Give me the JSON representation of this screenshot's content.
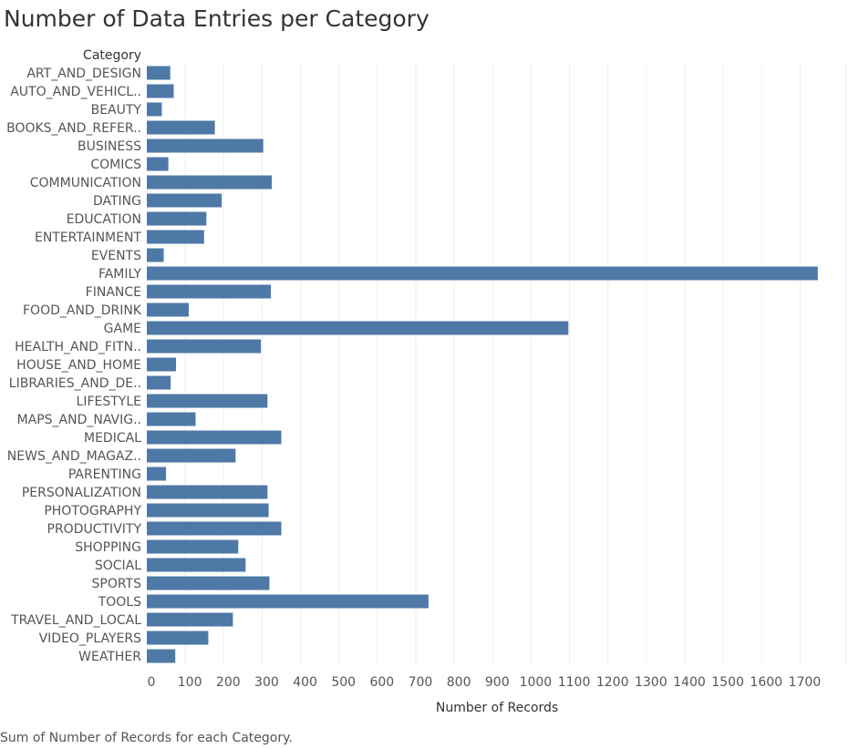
{
  "title": "Number of Data Entries per Category",
  "footer": "Sum of Number of Records for each Category.",
  "colors": {
    "bar": "#4e79a7",
    "grid": "#eeeeee",
    "text": "#555555"
  },
  "chart_data": {
    "type": "bar",
    "orientation": "horizontal",
    "title": "Number of Data Entries per Category",
    "category_header": "Category",
    "xlabel": "Number of Records",
    "xlim": [
      0,
      1800
    ],
    "xticks": [
      0,
      100,
      200,
      300,
      400,
      500,
      600,
      700,
      800,
      900,
      1000,
      1100,
      1200,
      1300,
      1400,
      1500,
      1600,
      1700
    ],
    "grid": true,
    "categories": [
      "ART_AND_DESIGN",
      "AUTO_AND_VEHICL..",
      "BEAUTY",
      "BOOKS_AND_REFER..",
      "BUSINESS",
      "COMICS",
      "COMMUNICATION",
      "DATING",
      "EDUCATION",
      "ENTERTAINMENT",
      "EVENTS",
      "FAMILY",
      "FINANCE",
      "FOOD_AND_DRINK",
      "GAME",
      "HEALTH_AND_FITN..",
      "HOUSE_AND_HOME",
      "LIBRARIES_AND_DE..",
      "LIFESTYLE",
      "MAPS_AND_NAVIG..",
      "MEDICAL",
      "NEWS_AND_MAGAZ..",
      "PARENTING",
      "PERSONALIZATION",
      "PHOTOGRAPHY",
      "PRODUCTIVITY",
      "SHOPPING",
      "SOCIAL",
      "SPORTS",
      "TOOLS",
      "TRAVEL_AND_LOCAL",
      "VIDEO_PLAYERS",
      "WEATHER"
    ],
    "values": [
      61,
      70,
      39,
      177,
      303,
      56,
      325,
      195,
      155,
      149,
      44,
      1746,
      323,
      109,
      1097,
      297,
      76,
      62,
      314,
      127,
      350,
      231,
      50,
      314,
      317,
      350,
      238,
      257,
      319,
      733,
      224,
      160,
      74
    ]
  }
}
